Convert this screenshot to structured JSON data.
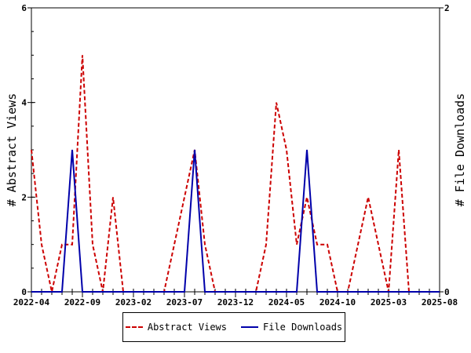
{
  "chart_data": {
    "type": "line",
    "title": "",
    "xlabel": "",
    "ylabel": "# Abstract Views",
    "y2label": "# File Downloads",
    "x_ticks": [
      "2022-04",
      "2022-09",
      "2023-02",
      "2023-07",
      "2023-12",
      "2024-05",
      "2024-10",
      "2025-03",
      "2025-08"
    ],
    "xlim": [
      "2022-04",
      "2025-08"
    ],
    "ylim": [
      0,
      6
    ],
    "y_ticks": [
      0,
      2,
      4,
      6
    ],
    "y2lim": [
      0,
      2
    ],
    "y2_ticks": [
      0,
      2
    ],
    "grid": false,
    "legend_position": "bottom-center",
    "x": [
      "2022-04",
      "2022-05",
      "2022-06",
      "2022-07",
      "2022-08",
      "2022-09",
      "2022-10",
      "2022-11",
      "2022-12",
      "2023-01",
      "2023-02",
      "2023-03",
      "2023-04",
      "2023-05",
      "2023-06",
      "2023-07",
      "2023-08",
      "2023-09",
      "2023-10",
      "2023-11",
      "2023-12",
      "2024-01",
      "2024-02",
      "2024-03",
      "2024-04",
      "2024-05",
      "2024-06",
      "2024-07",
      "2024-08",
      "2024-09",
      "2024-10",
      "2024-11",
      "2024-12",
      "2025-01",
      "2025-02",
      "2025-03",
      "2025-04",
      "2025-05",
      "2025-06",
      "2025-07",
      "2025-08"
    ],
    "series": [
      {
        "name": "Abstract Views",
        "axis": "left",
        "color": "#cc0000",
        "style": "dashed",
        "values": [
          3,
          1,
          0,
          1,
          1,
          5,
          1,
          0,
          2,
          0,
          0,
          0,
          0,
          0,
          1,
          2,
          3,
          1,
          0,
          0,
          0,
          0,
          0,
          1,
          4,
          3,
          1,
          2,
          1,
          1,
          0,
          0,
          1,
          2,
          1,
          0,
          3,
          0,
          0,
          0,
          0
        ]
      },
      {
        "name": "File Downloads",
        "axis": "right",
        "color": "#0000aa",
        "style": "solid",
        "values": [
          0,
          0,
          0,
          0,
          1,
          0,
          0,
          0,
          0,
          0,
          0,
          0,
          0,
          0,
          0,
          0,
          1,
          0,
          0,
          0,
          0,
          0,
          0,
          0,
          0,
          0,
          0,
          1,
          0,
          0,
          0,
          0,
          0,
          0,
          0,
          0,
          0,
          0,
          0,
          0,
          0
        ]
      }
    ]
  }
}
